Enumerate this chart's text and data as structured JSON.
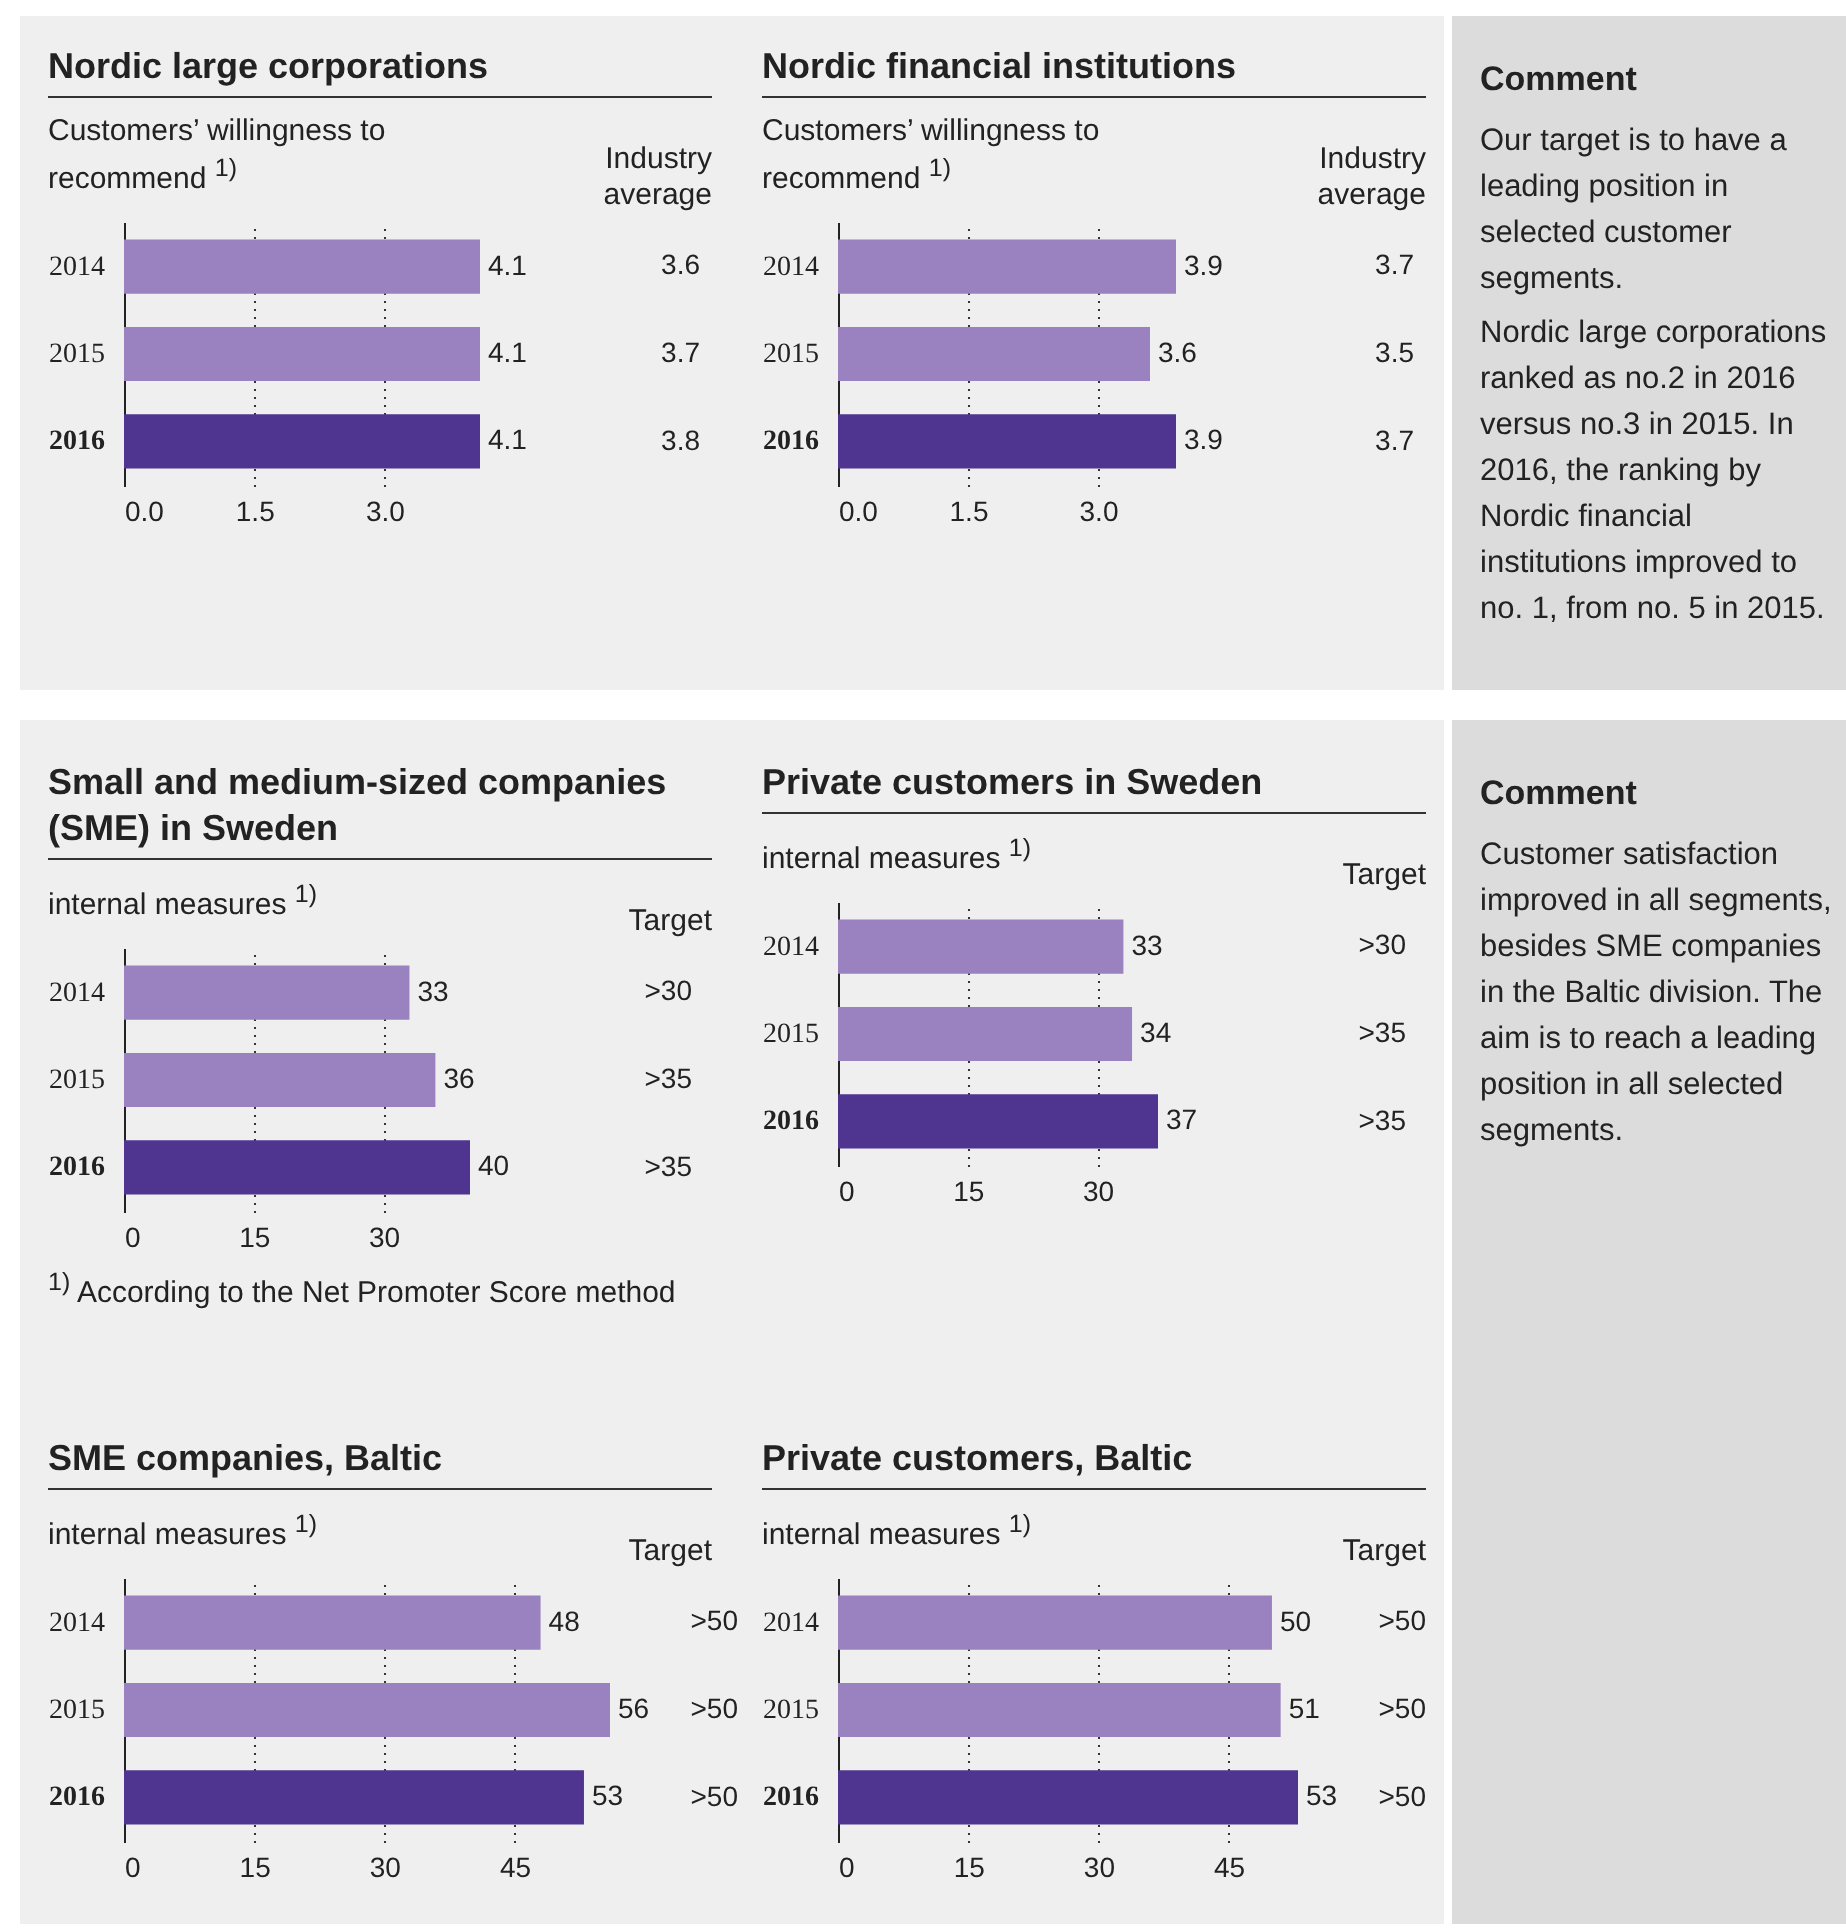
{
  "chart_data": [
    {
      "type": "bar",
      "orientation": "horizontal",
      "title": "Nordic large corporations",
      "subtitle": "Customers’ willingness to recommend $^{1)}$",
      "categories": [
        "2014",
        "2015",
        "2016"
      ],
      "values": [
        4.1,
        4.1,
        4.1
      ],
      "colors": [
        "#9a82c0",
        "#9a82c0",
        "#4f3590"
      ],
      "xlim": [
        0,
        4.1
      ],
      "xticks": [
        {
          "value": 0,
          "label": "0.0"
        },
        {
          "value": 1.5,
          "label": "1.5"
        },
        {
          "value": 3,
          "label": "3.0"
        }
      ],
      "grid": "x",
      "data_labels": true,
      "annotations": [
        "Industry average",
        "3.6",
        "3.7",
        "3.8"
      ]
    },
    {
      "type": "bar",
      "orientation": "horizontal",
      "title": "Nordic financial institutions",
      "subtitle": "Customers’ willingness to recommend $^{1)}$",
      "categories": [
        "2014",
        "2015",
        "2016"
      ],
      "values": [
        3.9,
        3.6,
        3.9
      ],
      "colors": [
        "#9a82c0",
        "#9a82c0",
        "#4f3590"
      ],
      "xlim": [
        0,
        3.9
      ],
      "xticks": [
        {
          "value": 0,
          "label": "0.0"
        },
        {
          "value": 1.5,
          "label": "1.5"
        },
        {
          "value": 3,
          "label": "3.0"
        }
      ],
      "grid": "x",
      "data_labels": true,
      "annotations": [
        "Industry average",
        "3.7",
        "3.5",
        "3.7"
      ]
    },
    {
      "type": "bar",
      "orientation": "horizontal",
      "title": "Small and medium-sized companies (SME) in Sweden",
      "subtitle": "internal measures $^{1)}$",
      "categories": [
        "2014",
        "2015",
        "2016"
      ],
      "values": [
        33,
        36,
        40
      ],
      "colors": [
        "#9a82c0",
        "#9a82c0",
        "#4f3590"
      ],
      "xlim": [
        0,
        40
      ],
      "xticks": [
        0,
        15,
        30
      ],
      "grid": "x",
      "data_labels": true,
      "annotations": [
        "Target",
        ">30",
        ">35",
        ">35",
        "$^{1)}$ According to the Net Promoter Score method"
      ]
    },
    {
      "type": "bar",
      "orientation": "horizontal",
      "title": "Private customers in Sweden",
      "subtitle": "internal measures $^{1)}$",
      "categories": [
        "2014",
        "2015",
        "2016"
      ],
      "values": [
        33,
        34,
        37
      ],
      "colors": [
        "#9a82c0",
        "#9a82c0",
        "#4f3590"
      ],
      "xlim": [
        0,
        37
      ],
      "xticks": [
        0,
        15,
        30
      ],
      "grid": "x",
      "data_labels": true,
      "annotations": [
        "Target",
        ">30",
        ">35",
        ">35"
      ]
    },
    {
      "type": "bar",
      "orientation": "horizontal",
      "title": "SME companies, Baltic",
      "subtitle": "internal measures $^{1)}$",
      "categories": [
        "2014",
        "2015",
        "2016"
      ],
      "values": [
        48,
        56,
        53
      ],
      "colors": [
        "#9a82c0",
        "#9a82c0",
        "#4f3590"
      ],
      "xlim": [
        0,
        56
      ],
      "xticks": [
        0,
        15,
        30,
        45
      ],
      "grid": "x",
      "data_labels": true,
      "annotations": [
        "Target",
        ">50",
        ">50",
        ">50"
      ]
    },
    {
      "type": "bar",
      "orientation": "horizontal",
      "title": "Private customers, Baltic",
      "subtitle": "internal measures $^{1)}$",
      "categories": [
        "2014",
        "2015",
        "2016"
      ],
      "values": [
        50,
        51,
        53
      ],
      "colors": [
        "#9a82c0",
        "#9a82c0",
        "#4f3590"
      ],
      "xlim": [
        0,
        53
      ],
      "xticks": [
        0,
        15,
        30,
        45
      ],
      "grid": "x",
      "data_labels": true,
      "annotations": [
        "Target",
        ">50",
        ">50",
        ">50"
      ]
    },
    {
      "type": "other",
      "title": "Comment",
      "annotations": [
        "Our target is to have a leading position in selected customer segments.",
        "Nordic large corporations ranked as no.2 in 2016 versus no.3 in 2015. In 2016, the ranking by Nordic financial institutions improved to no. 1, from no. 5 in 2015."
      ]
    },
    {
      "type": "other",
      "title": "Comment",
      "annotations": [
        "Customer satisfaction improved in all segments, besides SME companies in the Baltic division. The aim is to reach a leading position in all selected segments."
      ]
    }
  ]
}
